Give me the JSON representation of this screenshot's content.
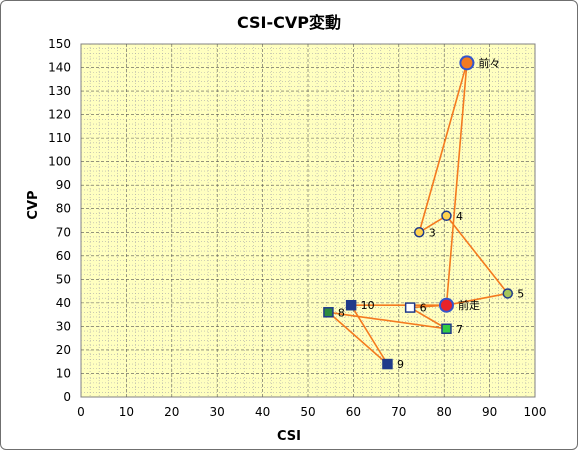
{
  "chart_data": {
    "type": "scatter",
    "title": "CSI-CVP変動",
    "xlabel": "CSI",
    "ylabel": "CVP",
    "xlim": [
      0,
      100
    ],
    "ylim": [
      0,
      150
    ],
    "x_ticks": [
      "0",
      "10",
      "20",
      "30",
      "40",
      "50",
      "60",
      "70",
      "80",
      "90",
      "100"
    ],
    "y_ticks": [
      "0",
      "10",
      "20",
      "30",
      "40",
      "50",
      "60",
      "70",
      "80",
      "90",
      "100",
      "110",
      "120",
      "130",
      "140",
      "150"
    ],
    "grid": true,
    "plot_background": "#ffffc0",
    "line_color": "#f47a1f",
    "path_order": [
      "前々",
      "3",
      "4",
      "5",
      "前走",
      "6",
      "7",
      "8",
      "9",
      "10",
      "前走",
      "前々"
    ],
    "points": [
      {
        "label": "前々",
        "x": 85,
        "y": 142,
        "shape": "circle",
        "fill": "#f47a1f",
        "stroke": "#3355cc",
        "size": "large"
      },
      {
        "label": "3",
        "x": 74.5,
        "y": 70,
        "shape": "circle",
        "fill": "#ffd24d",
        "stroke": "#1f3a8a",
        "size": "small"
      },
      {
        "label": "4",
        "x": 80.5,
        "y": 77,
        "shape": "circle",
        "fill": "#ffd24d",
        "stroke": "#1f3a8a",
        "size": "small"
      },
      {
        "label": "5",
        "x": 94,
        "y": 44,
        "shape": "circle",
        "fill": "#a5c65a",
        "stroke": "#1f3a8a",
        "size": "small"
      },
      {
        "label": "前走",
        "x": 80.5,
        "y": 39,
        "shape": "circle",
        "fill": "#e8232a",
        "stroke": "#3355cc",
        "size": "large"
      },
      {
        "label": "6",
        "x": 72.5,
        "y": 38,
        "shape": "square",
        "fill": "#ffffff",
        "stroke": "#1f3a8a",
        "size": "small"
      },
      {
        "label": "7",
        "x": 80.5,
        "y": 29,
        "shape": "square",
        "fill": "#33cc44",
        "stroke": "#1f3a8a",
        "size": "small"
      },
      {
        "label": "8",
        "x": 54.5,
        "y": 36,
        "shape": "square",
        "fill": "#2e8b3e",
        "stroke": "#1f3a8a",
        "size": "small"
      },
      {
        "label": "9",
        "x": 67.5,
        "y": 14,
        "shape": "square",
        "fill": "#1f3a8a",
        "stroke": "#1f3a8a",
        "size": "small"
      },
      {
        "label": "10",
        "x": 59.5,
        "y": 39,
        "shape": "square",
        "fill": "#1f3a8a",
        "stroke": "#1f3a8a",
        "size": "small"
      }
    ]
  }
}
